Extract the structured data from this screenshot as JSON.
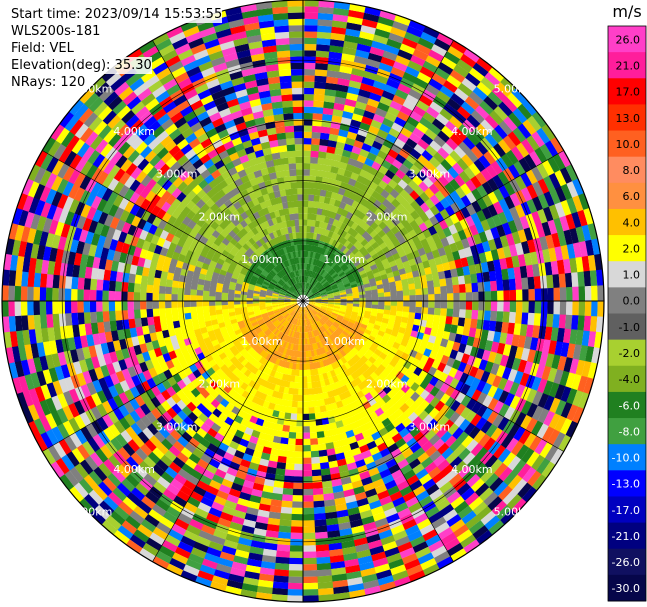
{
  "info": {
    "start_time": "Start time: 2023/09/14 15:53:55",
    "site": "WLS200s-181",
    "field": "Field: VEL",
    "elevation": "Elevation(deg): 35.30",
    "nrays": "NRays: 120"
  },
  "chart_data": {
    "type": "heatmap",
    "projection": "polar-ppi",
    "range_rings_km": [
      1.0,
      2.0,
      3.0,
      4.0,
      5.0
    ],
    "range_labels": [
      "1.00km",
      "2.00km",
      "3.00km",
      "4.00km",
      "5.00km"
    ],
    "max_range_km": 5.0,
    "n_rays": 120,
    "colorbar": {
      "unit": "m/s",
      "tick_labels": [
        "26.0",
        "21.0",
        "17.0",
        "13.0",
        "10.0",
        "8.0",
        "6.0",
        "4.0",
        "2.0",
        "1.0",
        "0.0",
        "-1.0",
        "-2.0",
        "-4.0",
        "-6.0",
        "-8.0",
        "-10.0",
        "-13.0",
        "-17.0",
        "-21.0",
        "-26.0",
        "-30.0"
      ],
      "colors": [
        "#ff3fc8",
        "#ff1e9b",
        "#ff0000",
        "#ff3000",
        "#ff6020",
        "#ff8c60",
        "#ff9040",
        "#ffc000",
        "#ffff00",
        "#d8d8d8",
        "#808080",
        "#606060",
        "#a8d030",
        "#80b020",
        "#208020",
        "#40a040",
        "#0080ff",
        "#0000ff",
        "#0000c0",
        "#000080",
        "#101060",
        "#06064a"
      ]
    }
  }
}
